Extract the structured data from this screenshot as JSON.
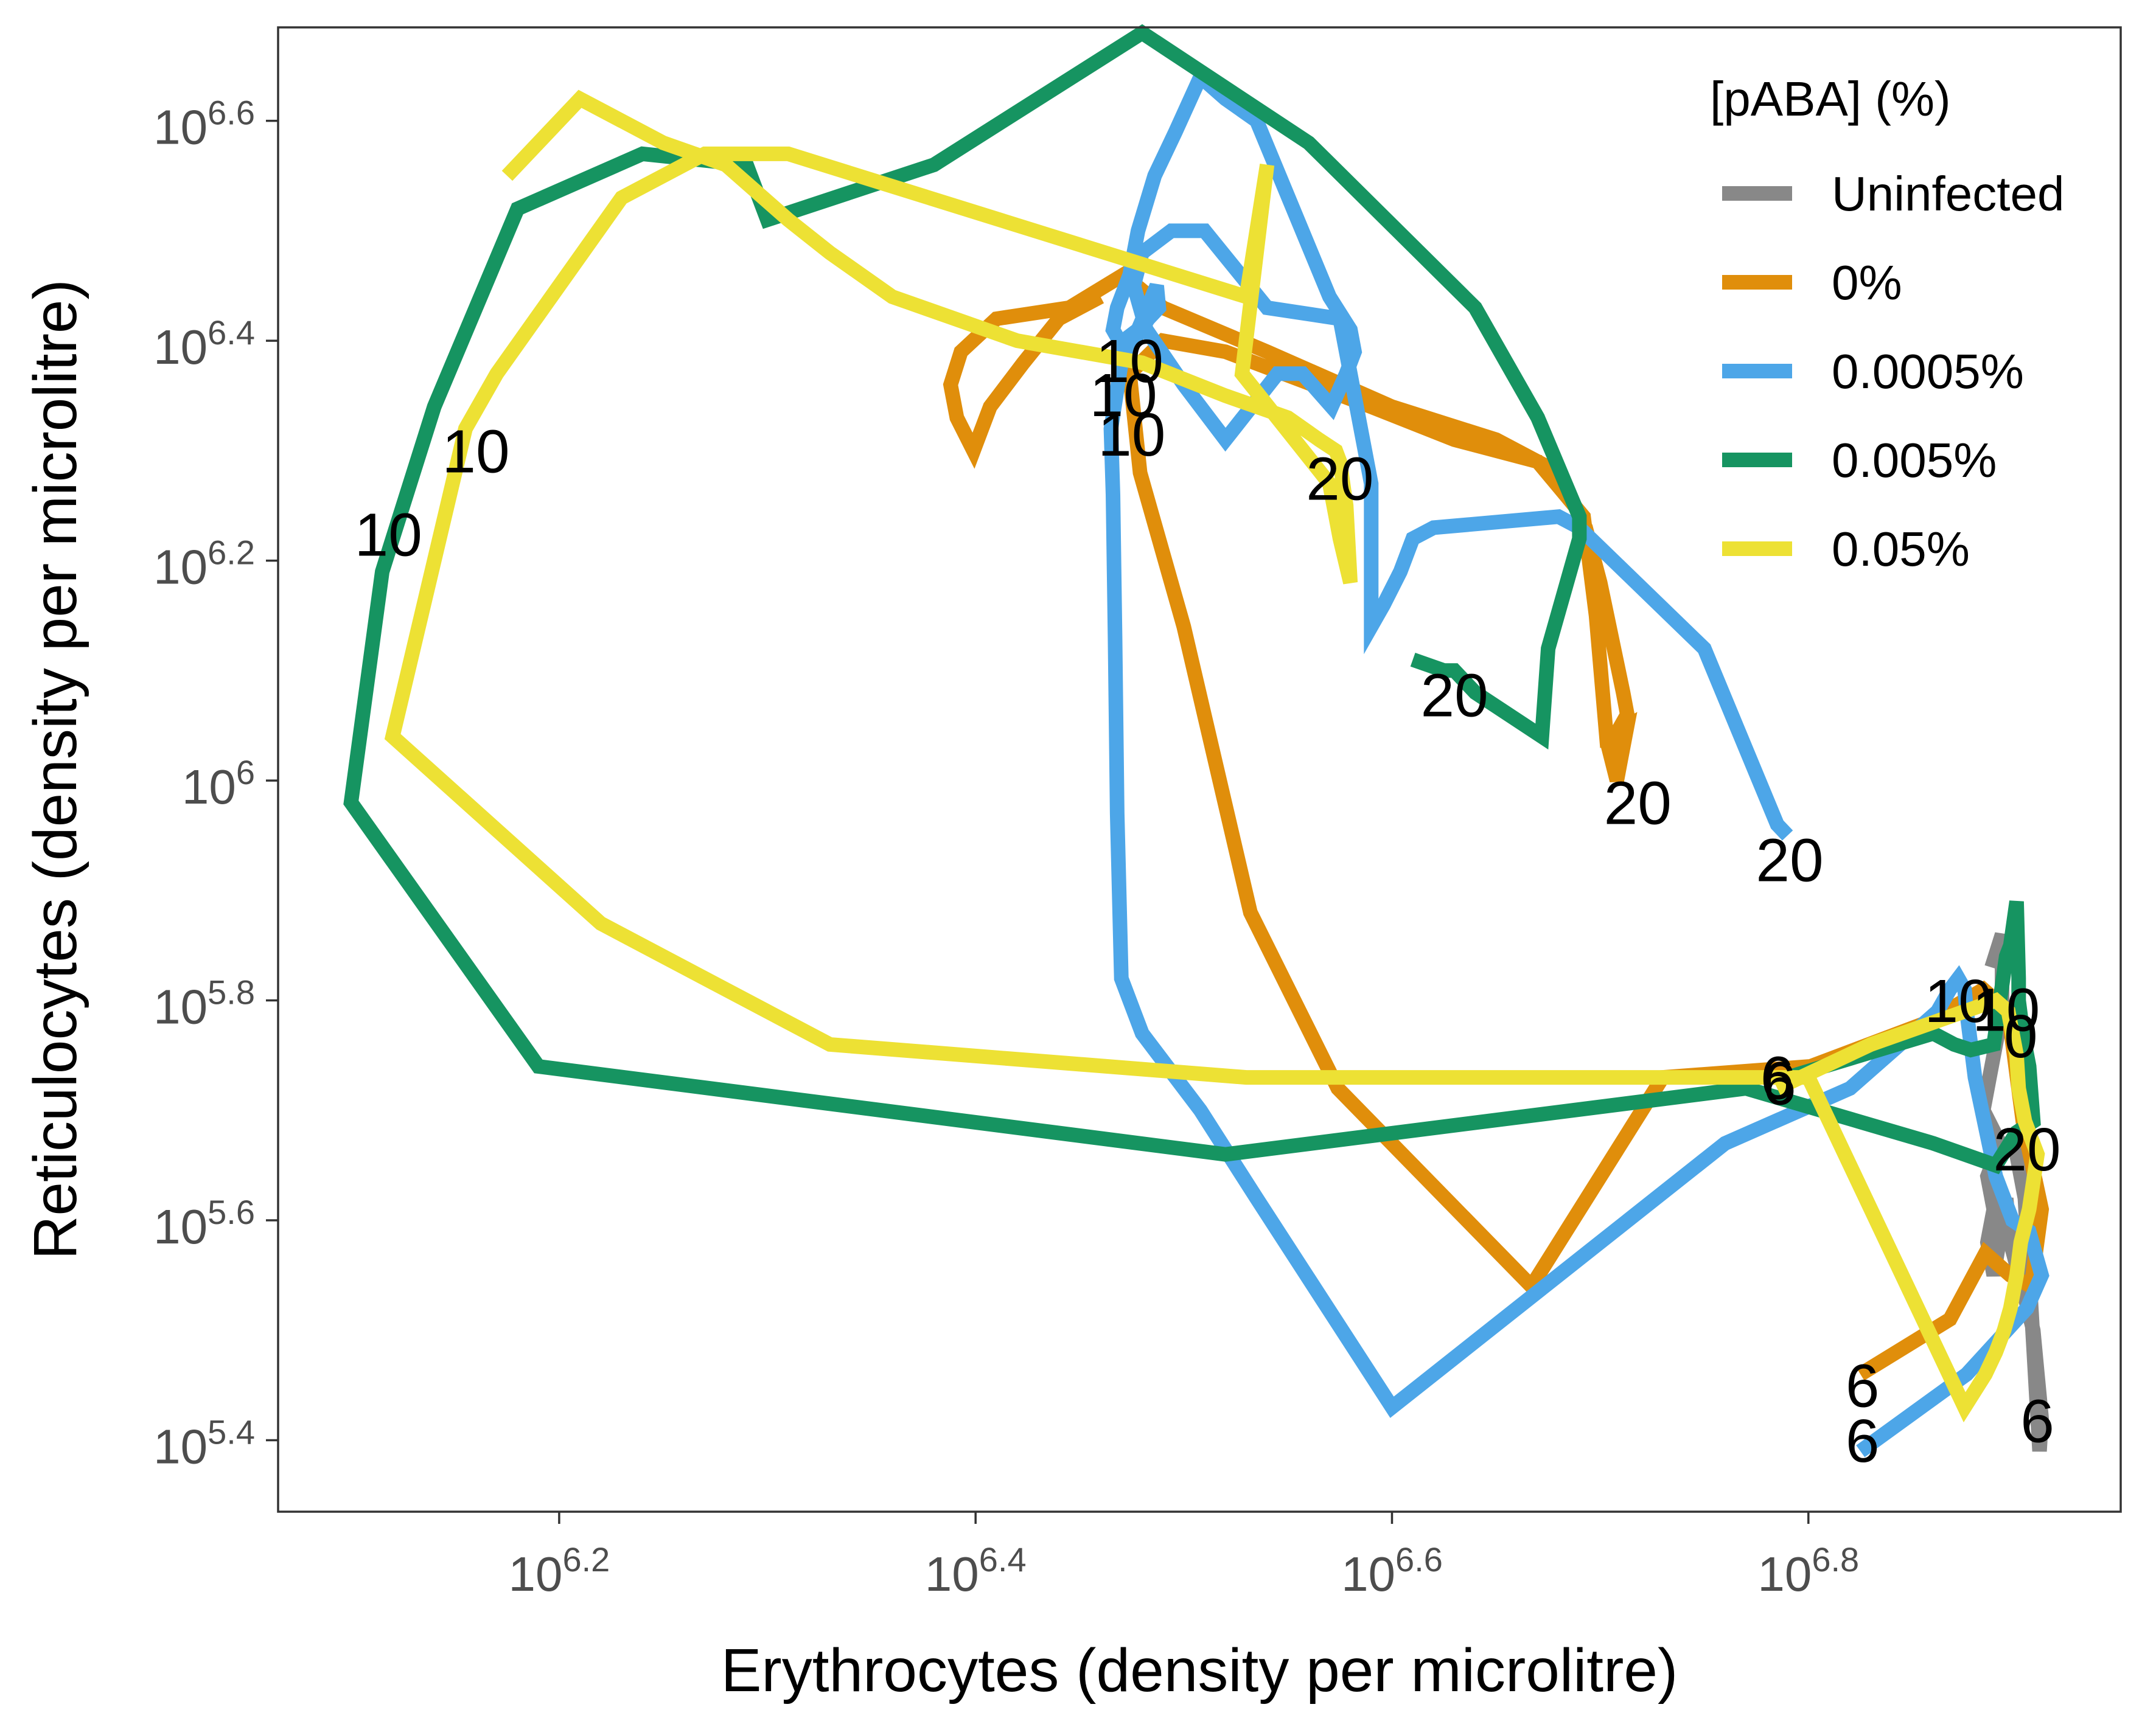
{
  "chart_data": {
    "type": "line",
    "xlabel": "Erythrocytes (density per microlitre)",
    "ylabel": "Reticulocytes (density per microlitre)",
    "x_scale": "log10",
    "y_scale": "log10",
    "xlim": [
      6.065,
      6.95
    ],
    "ylim": [
      5.335,
      6.685
    ],
    "x_ticks": [
      6.2,
      6.4,
      6.6,
      6.8
    ],
    "y_ticks": [
      5.4,
      5.6,
      5.8,
      6.0,
      6.2,
      6.4,
      6.6
    ],
    "tick_base": "10",
    "grid": false,
    "legend_position": "top-right",
    "legend_title": "[pABA] (%)",
    "series": [
      {
        "name": "Uninfected",
        "color": "#888888",
        "points": [
          [
            6.888,
            5.83
          ],
          [
            6.893,
            5.86
          ],
          [
            6.893,
            5.79
          ],
          [
            6.887,
            5.73
          ],
          [
            6.884,
            5.7
          ],
          [
            6.892,
            5.67
          ],
          [
            6.886,
            5.64
          ],
          [
            6.889,
            5.61
          ],
          [
            6.886,
            5.58
          ],
          [
            6.889,
            5.55
          ],
          [
            6.895,
            5.62
          ],
          [
            6.897,
            5.58
          ],
          [
            6.904,
            5.53
          ],
          [
            6.908,
            5.5
          ],
          [
            6.91,
            5.46
          ],
          [
            6.912,
            5.42
          ],
          [
            6.911,
            5.39
          ],
          [
            6.904,
            5.62
          ],
          [
            6.9,
            5.66
          ],
          [
            6.906,
            5.69
          ]
        ],
        "day_labels": [
          {
            "text": "6",
            "x": 6.91,
            "y": 5.413
          }
        ]
      },
      {
        "name": "0%",
        "color": "#E08E0B",
        "points": [
          [
            6.825,
            5.46
          ],
          [
            6.868,
            5.51
          ],
          [
            6.885,
            5.57
          ],
          [
            6.897,
            5.55
          ],
          [
            6.907,
            5.54
          ],
          [
            6.912,
            5.61
          ],
          [
            6.903,
            5.69
          ],
          [
            6.896,
            5.79
          ],
          [
            6.884,
            5.81
          ],
          [
            6.857,
            5.78
          ],
          [
            6.801,
            5.74
          ],
          [
            6.73,
            5.73
          ],
          [
            6.667,
            5.54
          ],
          [
            6.574,
            5.72
          ],
          [
            6.532,
            5.88
          ],
          [
            6.5,
            6.14
          ],
          [
            6.479,
            6.28
          ],
          [
            6.474,
            6.37
          ],
          [
            6.49,
            6.4
          ],
          [
            6.52,
            6.39
          ],
          [
            6.59,
            6.34
          ],
          [
            6.63,
            6.31
          ],
          [
            6.67,
            6.29
          ],
          [
            6.692,
            6.24
          ],
          [
            6.698,
            6.15
          ],
          [
            6.703,
            6.04
          ],
          [
            6.713,
            6.05
          ],
          [
            6.71,
            6.02
          ],
          [
            6.708,
            6.0
          ],
          [
            6.704,
            6.03
          ],
          [
            6.713,
            6.06
          ],
          [
            6.711,
            6.08
          ],
          [
            6.7,
            6.18
          ],
          [
            6.693,
            6.23
          ],
          [
            6.68,
            6.28
          ],
          [
            6.65,
            6.31
          ],
          [
            6.6,
            6.34
          ],
          [
            6.54,
            6.39
          ],
          [
            6.49,
            6.43
          ],
          [
            6.471,
            6.46
          ],
          [
            6.445,
            6.43
          ],
          [
            6.41,
            6.42
          ],
          [
            6.393,
            6.39
          ],
          [
            6.388,
            6.36
          ],
          [
            6.391,
            6.33
          ],
          [
            6.399,
            6.3
          ],
          [
            6.407,
            6.34
          ],
          [
            6.423,
            6.38
          ],
          [
            6.44,
            6.42
          ],
          [
            6.46,
            6.44
          ]
        ],
        "day_labels": [
          {
            "text": "6",
            "x": 6.826,
            "y": 5.445
          },
          {
            "text": "10",
            "x": 6.471,
            "y": 6.346
          },
          {
            "text": "20",
            "x": 6.718,
            "y": 5.975
          }
        ]
      },
      {
        "name": "0.0005%",
        "color": "#4DA6E8",
        "points": [
          [
            6.825,
            5.39
          ],
          [
            6.876,
            5.46
          ],
          [
            6.905,
            5.52
          ],
          [
            6.912,
            5.55
          ],
          [
            6.906,
            5.59
          ],
          [
            6.898,
            5.6
          ],
          [
            6.89,
            5.64
          ],
          [
            6.88,
            5.73
          ],
          [
            6.876,
            5.79
          ],
          [
            6.875,
            5.81
          ],
          [
            6.872,
            5.82
          ],
          [
            6.868,
            5.81
          ],
          [
            6.862,
            5.79
          ],
          [
            6.85,
            5.77
          ],
          [
            6.82,
            5.72
          ],
          [
            6.76,
            5.67
          ],
          [
            6.6,
            5.43
          ],
          [
            6.535,
            5.62
          ],
          [
            6.508,
            5.7
          ],
          [
            6.48,
            5.77
          ],
          [
            6.47,
            5.82
          ],
          [
            6.468,
            5.97
          ],
          [
            6.467,
            6.13
          ],
          [
            6.466,
            6.26
          ],
          [
            6.465,
            6.32
          ],
          [
            6.47,
            6.38
          ],
          [
            6.471,
            6.4
          ],
          [
            6.478,
            6.41
          ],
          [
            6.487,
            6.45
          ],
          [
            6.488,
            6.43
          ],
          [
            6.483,
            6.42
          ],
          [
            6.476,
            6.4
          ],
          [
            6.472,
            6.39
          ],
          [
            6.466,
            6.41
          ],
          [
            6.468,
            6.43
          ],
          [
            6.474,
            6.46
          ],
          [
            6.478,
            6.5
          ],
          [
            6.486,
            6.55
          ],
          [
            6.496,
            6.59
          ],
          [
            6.508,
            6.64
          ],
          [
            6.52,
            6.62
          ],
          [
            6.535,
            6.6
          ],
          [
            6.57,
            6.44
          ],
          [
            6.58,
            6.41
          ],
          [
            6.582,
            6.39
          ],
          [
            6.578,
            6.37
          ],
          [
            6.571,
            6.34
          ],
          [
            6.557,
            6.37
          ],
          [
            6.545,
            6.37
          ],
          [
            6.52,
            6.31
          ],
          [
            6.5,
            6.36
          ],
          [
            6.482,
            6.41
          ],
          [
            6.476,
            6.45
          ],
          [
            6.48,
            6.48
          ],
          [
            6.494,
            6.5
          ],
          [
            6.51,
            6.5
          ],
          [
            6.54,
            6.43
          ],
          [
            6.575,
            6.42
          ],
          [
            6.59,
            6.27
          ],
          [
            6.59,
            6.14
          ],
          [
            6.596,
            6.16
          ],
          [
            6.604,
            6.19
          ],
          [
            6.61,
            6.22
          ],
          [
            6.62,
            6.23
          ],
          [
            6.68,
            6.24
          ],
          [
            6.69,
            6.23
          ],
          [
            6.75,
            6.12
          ],
          [
            6.785,
            5.96
          ],
          [
            6.79,
            5.95
          ]
        ],
        "day_labels": [
          {
            "text": "6",
            "x": 6.826,
            "y": 5.395
          },
          {
            "text": "10",
            "x": 6.474,
            "y": 6.377
          },
          {
            "text": "20",
            "x": 6.791,
            "y": 5.923
          }
        ]
      },
      {
        "name": "0.005%",
        "color": "#169461",
        "points": [
          [
            6.79,
            5.73
          ],
          [
            6.86,
            5.77
          ],
          [
            6.87,
            5.76
          ],
          [
            6.878,
            5.755
          ],
          [
            6.889,
            5.76
          ],
          [
            6.895,
            5.84
          ],
          [
            6.897,
            5.85
          ],
          [
            6.9,
            5.89
          ],
          [
            6.901,
            5.82
          ],
          [
            6.901,
            5.8
          ],
          [
            6.903,
            5.77
          ],
          [
            6.906,
            5.74
          ],
          [
            6.908,
            5.69
          ],
          [
            6.9,
            5.68
          ],
          [
            6.89,
            5.65
          ],
          [
            6.86,
            5.67
          ],
          [
            6.77,
            5.72
          ],
          [
            6.52,
            5.66
          ],
          [
            6.19,
            5.74
          ],
          [
            6.1,
            5.98
          ],
          [
            6.115,
            6.19
          ],
          [
            6.12,
            6.22
          ],
          [
            6.14,
            6.34
          ],
          [
            6.18,
            6.52
          ],
          [
            6.24,
            6.57
          ],
          [
            6.29,
            6.56
          ],
          [
            6.3,
            6.51
          ],
          [
            6.38,
            6.56
          ],
          [
            6.48,
            6.68
          ],
          [
            6.56,
            6.58
          ],
          [
            6.64,
            6.43
          ],
          [
            6.67,
            6.33
          ],
          [
            6.69,
            6.24
          ],
          [
            6.69,
            6.22
          ],
          [
            6.675,
            6.12
          ],
          [
            6.672,
            6.04
          ],
          [
            6.64,
            6.08
          ],
          [
            6.63,
            6.1
          ],
          [
            6.625,
            6.1
          ],
          [
            6.61,
            6.11
          ]
        ],
        "day_labels": [
          {
            "text": "6",
            "x": 6.785,
            "y": 5.725
          },
          {
            "text": "10",
            "x": 6.118,
            "y": 6.219
          },
          {
            "text": "20",
            "x": 6.63,
            "y": 6.073
          }
        ]
      },
      {
        "name": "0.05%",
        "color": "#EDE134",
        "points": [
          [
            6.785,
            5.72
          ],
          [
            6.83,
            5.76
          ],
          [
            6.875,
            5.79
          ],
          [
            6.89,
            5.8
          ],
          [
            6.896,
            5.79
          ],
          [
            6.898,
            5.77
          ],
          [
            6.9,
            5.75
          ],
          [
            6.901,
            5.72
          ],
          [
            6.904,
            5.69
          ],
          [
            6.91,
            5.66
          ],
          [
            6.906,
            5.61
          ],
          [
            6.902,
            5.58
          ],
          [
            6.9,
            5.55
          ],
          [
            6.897,
            5.52
          ],
          [
            6.894,
            5.5
          ],
          [
            6.89,
            5.48
          ],
          [
            6.885,
            5.46
          ],
          [
            6.875,
            5.43
          ],
          [
            6.8,
            5.73
          ],
          [
            6.53,
            5.73
          ],
          [
            6.33,
            5.76
          ],
          [
            6.22,
            5.87
          ],
          [
            6.12,
            6.04
          ],
          [
            6.155,
            6.32
          ],
          [
            6.17,
            6.37
          ],
          [
            6.23,
            6.53
          ],
          [
            6.27,
            6.57
          ],
          [
            6.31,
            6.57
          ],
          [
            6.53,
            6.44
          ],
          [
            6.54,
            6.56
          ],
          [
            6.528,
            6.37
          ],
          [
            6.57,
            6.27
          ],
          [
            6.575,
            6.22
          ],
          [
            6.58,
            6.18
          ],
          [
            6.578,
            6.25
          ],
          [
            6.575,
            6.29
          ],
          [
            6.573,
            6.3
          ],
          [
            6.565,
            6.31
          ],
          [
            6.55,
            6.33
          ],
          [
            6.52,
            6.35
          ],
          [
            6.48,
            6.38
          ],
          [
            6.42,
            6.4
          ],
          [
            6.36,
            6.44
          ],
          [
            6.33,
            6.48
          ],
          [
            6.31,
            6.51
          ],
          [
            6.28,
            6.56
          ],
          [
            6.25,
            6.58
          ],
          [
            6.21,
            6.62
          ],
          [
            6.175,
            6.55
          ]
        ],
        "day_labels": [
          {
            "text": "6",
            "x": 6.786,
            "y": 5.72
          },
          {
            "text": "10",
            "x": 6.895,
            "y": 5.787
          },
          {
            "text": "20",
            "x": 6.905,
            "y": 5.66
          }
        ]
      }
    ],
    "extra_day_labels": [
      {
        "text": "10",
        "x": 6.16,
        "y": 6.295
      },
      {
        "text": "10",
        "x": 6.475,
        "y": 6.31
      },
      {
        "text": "20",
        "x": 6.575,
        "y": 6.27
      },
      {
        "text": "0",
        "x": 6.902,
        "y": 5.763
      },
      {
        "text": "10",
        "x": 6.872,
        "y": 5.795
      }
    ]
  }
}
